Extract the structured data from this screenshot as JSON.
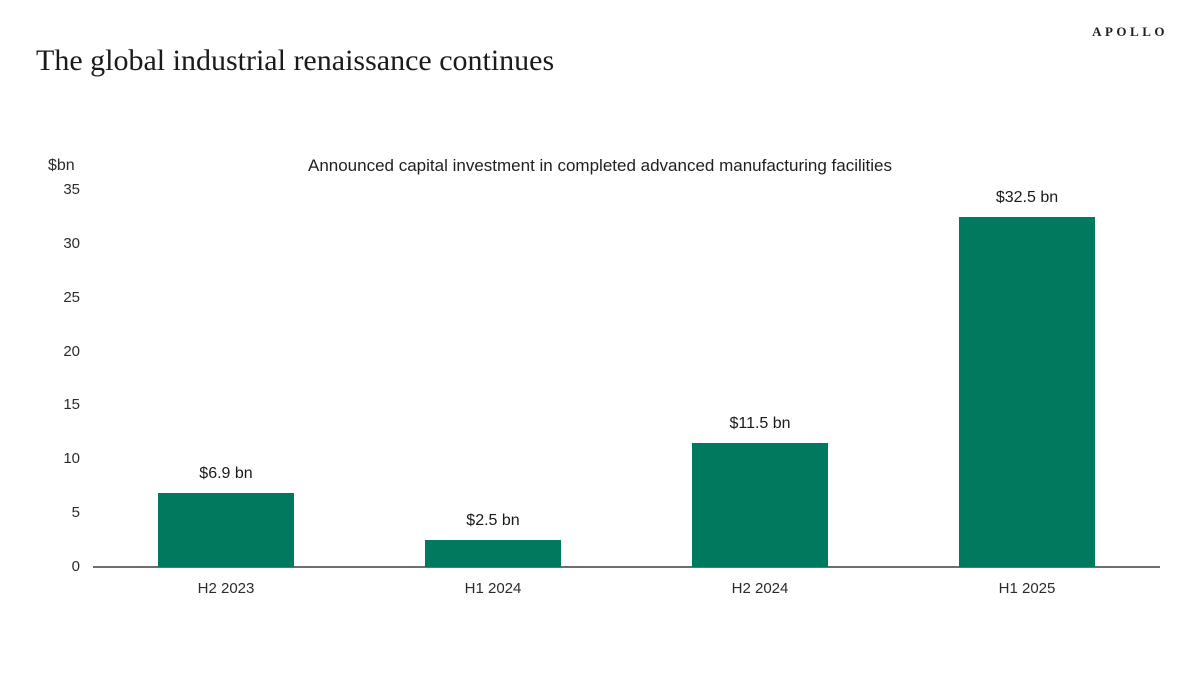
{
  "header": {
    "brand": "APOLLO",
    "title": "The global industrial renaissance continues"
  },
  "chart_data": {
    "type": "bar",
    "title": "Announced capital investment in completed advanced manufacturing facilities",
    "xlabel": "",
    "ylabel": "$bn",
    "categories": [
      "H2 2023",
      "H1 2024",
      "H2 2024",
      "H1 2025"
    ],
    "values": [
      6.9,
      2.5,
      11.5,
      32.5
    ],
    "value_labels": [
      "$6.9 bn",
      "$2.5 bn",
      "$11.5 bn",
      "$32.5 bn"
    ],
    "ylim": [
      0,
      35
    ],
    "yticks": [
      0,
      5,
      10,
      15,
      20,
      25,
      30,
      35
    ],
    "grid": false,
    "legend": "none",
    "bar_color": "#007A5E",
    "axis_color": "#6E6E6E"
  }
}
